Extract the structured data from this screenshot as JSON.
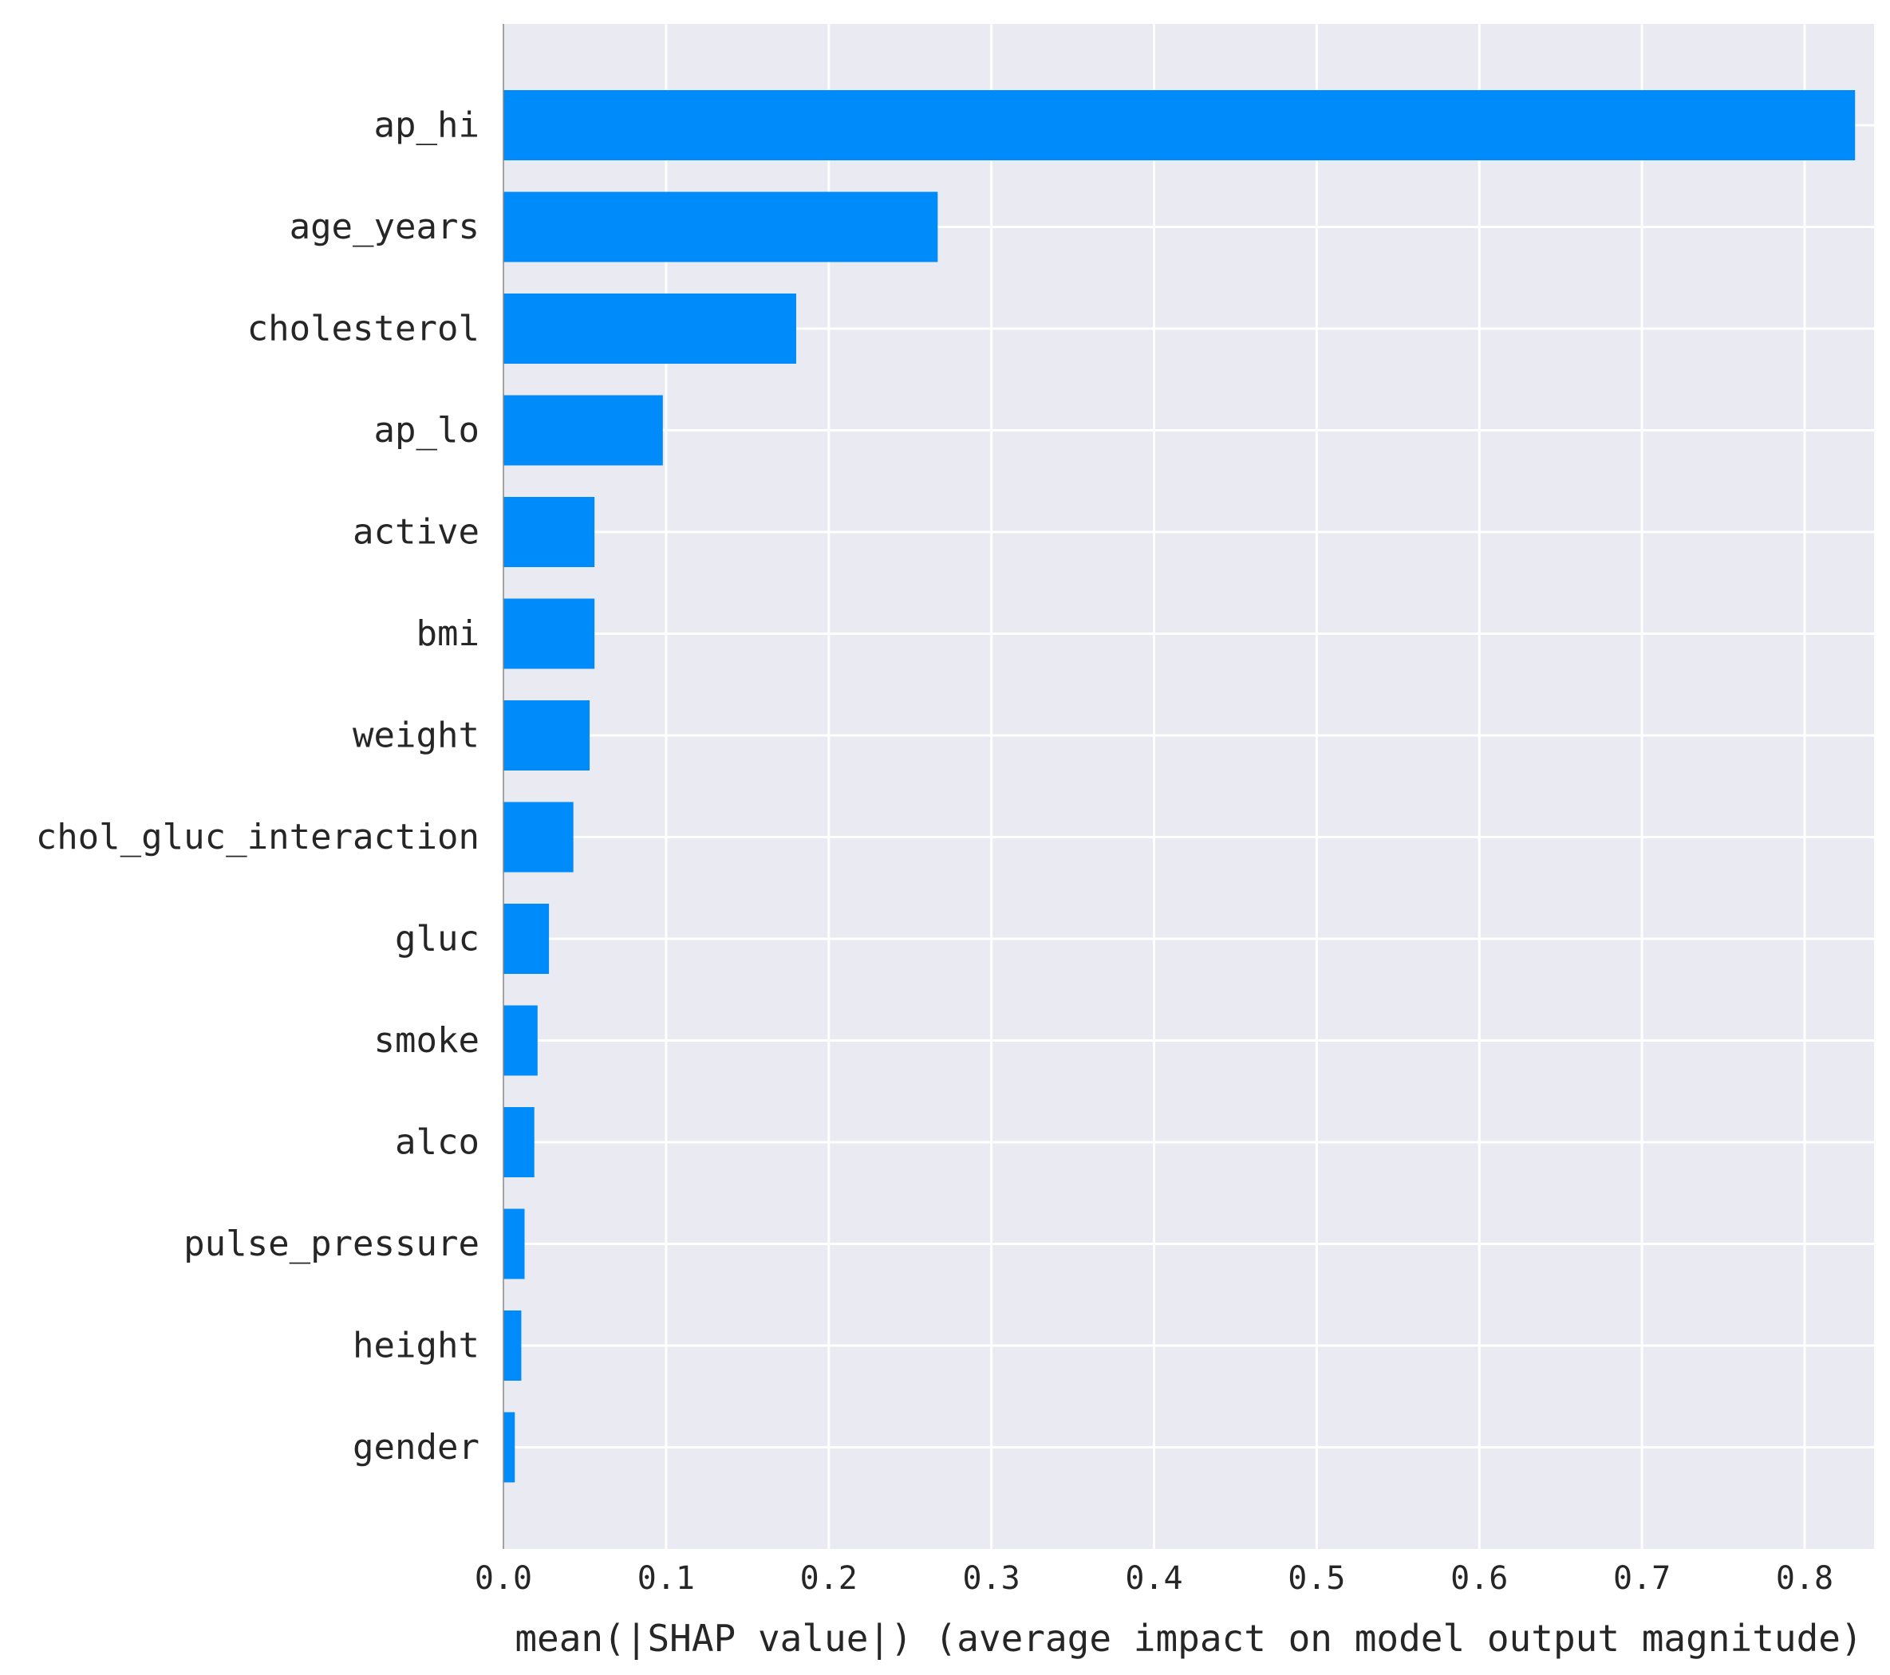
{
  "chart_data": {
    "type": "bar",
    "orientation": "horizontal",
    "title": "",
    "xlabel": "mean(|SHAP value|) (average impact on model output magnitude)",
    "ylabel": "",
    "xlim": [
      0,
      0.87
    ],
    "xticks": [
      0.0,
      0.1,
      0.2,
      0.3,
      0.4,
      0.5,
      0.6,
      0.7,
      0.8
    ],
    "xtick_labels": [
      "0.0",
      "0.1",
      "0.2",
      "0.3",
      "0.4",
      "0.5",
      "0.6",
      "0.7",
      "0.8"
    ],
    "grid": true,
    "legend": "none",
    "bar_color": "#008bfb",
    "background_color": "#eaeaf2",
    "categories": [
      "ap_hi",
      "age_years",
      "cholesterol",
      "ap_lo",
      "active",
      "bmi",
      "weight",
      "chol_gluc_interaction",
      "gluc",
      "smoke",
      "alco",
      "pulse_pressure",
      "height",
      "gender"
    ],
    "values": [
      0.831,
      0.267,
      0.18,
      0.098,
      0.056,
      0.056,
      0.053,
      0.043,
      0.028,
      0.021,
      0.019,
      0.013,
      0.011,
      0.007
    ]
  }
}
